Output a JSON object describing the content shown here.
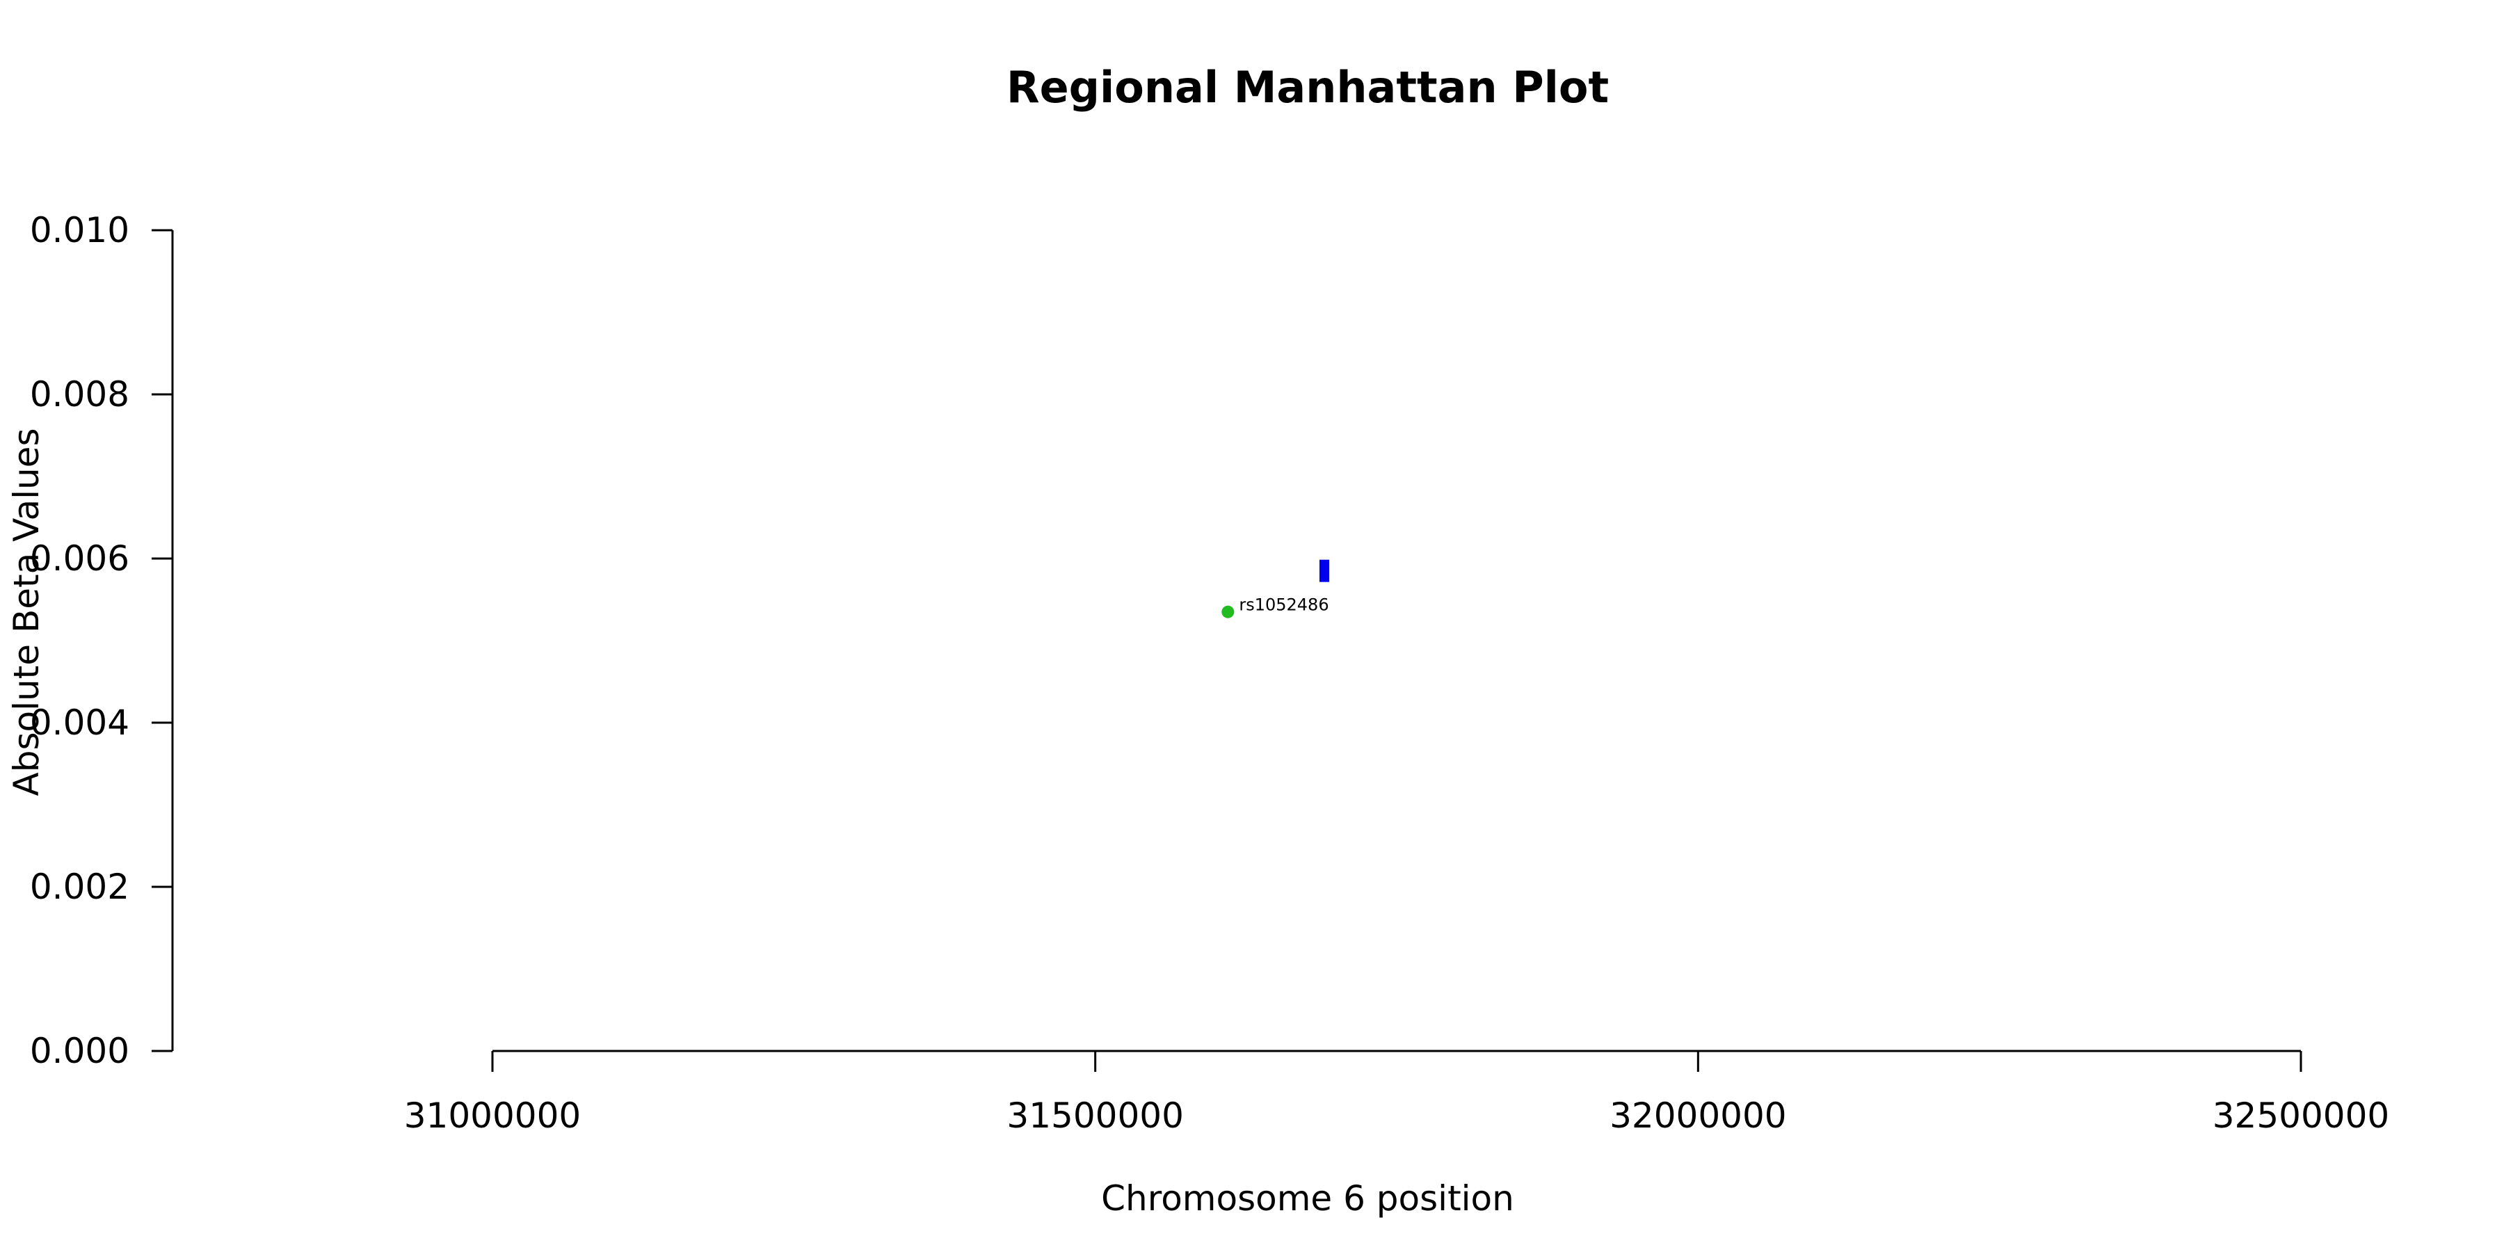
{
  "chart_data": {
    "type": "scatter",
    "title": "Regional Manhattan Plot",
    "xlabel": "Chromosome 6 position",
    "ylabel": "Absolute Beta Values",
    "xlim": [
      30610000,
      32650000
    ],
    "ylim": [
      0,
      0.01
    ],
    "x_ticks": [
      31000000,
      31500000,
      32000000,
      32500000
    ],
    "x_tick_labels": [
      "31000000",
      "31500000",
      "32000000",
      "32500000"
    ],
    "y_ticks": [
      0,
      0.002,
      0.004,
      0.006,
      0.008,
      0.01
    ],
    "y_tick_labels": [
      "0.000",
      "0.002",
      "0.004",
      "0.006",
      "0.008",
      "0.010"
    ],
    "grid": false,
    "series": [
      {
        "marker": "circle",
        "color": "#22bb22",
        "points": [
          {
            "x": 31610000,
            "y": 0.00535,
            "label": "rs1052486"
          }
        ]
      },
      {
        "marker": "square",
        "color": "#0000ee",
        "points": [
          {
            "x": 31690000,
            "y": 0.00585
          }
        ]
      }
    ]
  }
}
